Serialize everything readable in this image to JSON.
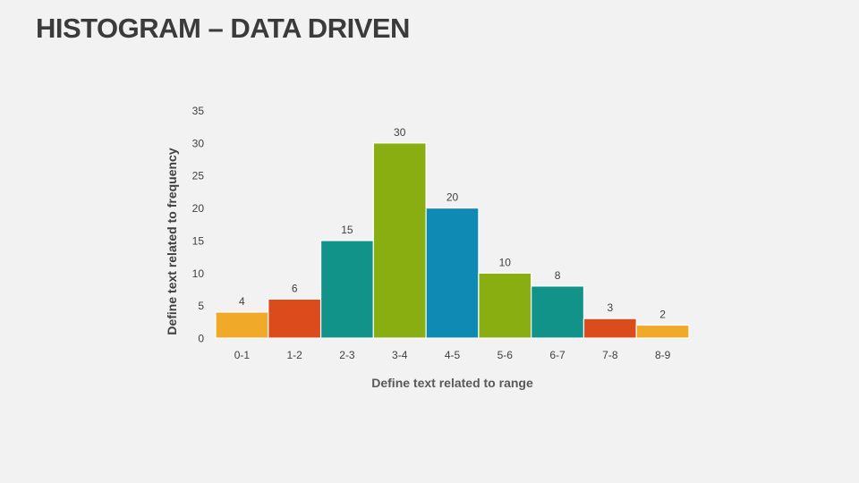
{
  "slide_title": "HISTOGRAM – DATA DRIVEN",
  "chart_data": {
    "type": "bar",
    "title": "",
    "xlabel": "Define text related to range",
    "ylabel": "Define text related to frequency",
    "categories": [
      "0-1",
      "1-2",
      "2-3",
      "3-4",
      "4-5",
      "5-6",
      "6-7",
      "7-8",
      "8-9"
    ],
    "values": [
      4,
      6,
      15,
      30,
      20,
      10,
      8,
      3,
      2
    ],
    "colors": [
      "#F0A928",
      "#DC4B1C",
      "#12938A",
      "#88AE12",
      "#0E8AB5",
      "#88AE12",
      "#12938A",
      "#DC4B1C",
      "#F0A928"
    ],
    "ylim": [
      0,
      35
    ],
    "yticks": [
      "0",
      "5",
      "10",
      "15",
      "20",
      "25",
      "30",
      "35"
    ],
    "data_labels": true,
    "grid": false,
    "legend": "none"
  }
}
